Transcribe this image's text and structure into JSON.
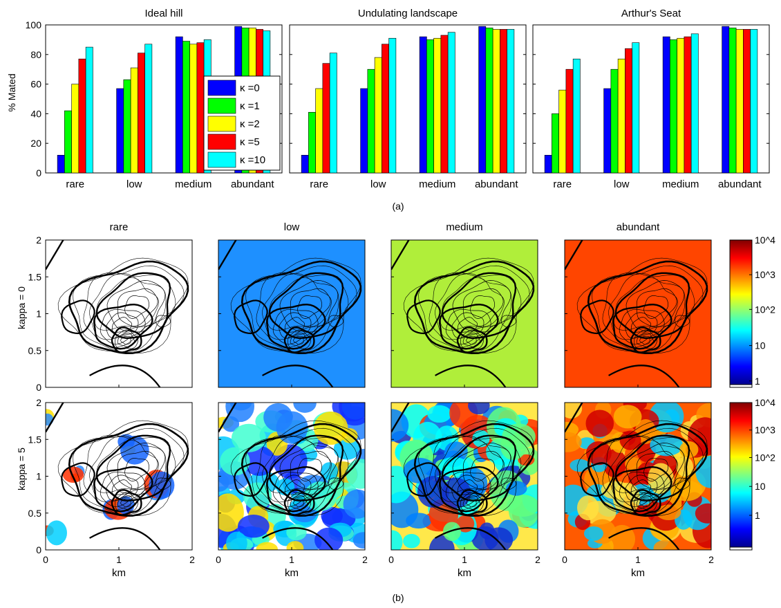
{
  "colors": {
    "kappa_0": "#0000ff",
    "kappa_1": "#00ff00",
    "kappa_2": "#ffff00",
    "kappa_5": "#ff0000",
    "kappa_10": "#00ffff",
    "rare_background": "#ffffff",
    "low_background": "#1e90ff",
    "medium_background": "#b0ee3a",
    "abundant_background": "#ff4500"
  },
  "chart_data": [
    {
      "type": "bar",
      "title": "Ideal hill",
      "ylabel": "% Mated",
      "xlabel": "",
      "categories": [
        "rare",
        "low",
        "medium",
        "abundant"
      ],
      "ylim": [
        0,
        100
      ],
      "yticks": [
        "0",
        "20",
        "40",
        "60",
        "80",
        "100"
      ],
      "legend_position": "center-right",
      "series": [
        {
          "name": "κ =0",
          "values": [
            12,
            57,
            92,
            99
          ]
        },
        {
          "name": "κ =1",
          "values": [
            42,
            63,
            89,
            98
          ]
        },
        {
          "name": "κ =2",
          "values": [
            60,
            71,
            87,
            98
          ]
        },
        {
          "name": "κ =5",
          "values": [
            77,
            81,
            88,
            97
          ]
        },
        {
          "name": "κ =10",
          "values": [
            85,
            87,
            90,
            96
          ]
        }
      ]
    },
    {
      "type": "bar",
      "title": "Undulating landscape",
      "categories": [
        "rare",
        "low",
        "medium",
        "abundant"
      ],
      "ylim": [
        0,
        100
      ],
      "series": [
        {
          "name": "κ =0",
          "values": [
            12,
            57,
            92,
            99
          ]
        },
        {
          "name": "κ =1",
          "values": [
            41,
            70,
            90,
            98
          ]
        },
        {
          "name": "κ =2",
          "values": [
            57,
            78,
            91,
            97
          ]
        },
        {
          "name": "κ =5",
          "values": [
            74,
            87,
            93,
            97
          ]
        },
        {
          "name": "κ =10",
          "values": [
            81,
            91,
            95,
            97
          ]
        }
      ]
    },
    {
      "type": "bar",
      "title": "Arthur's Seat",
      "categories": [
        "rare",
        "low",
        "medium",
        "abundant"
      ],
      "ylim": [
        0,
        100
      ],
      "series": [
        {
          "name": "κ =0",
          "values": [
            12,
            57,
            92,
            99
          ]
        },
        {
          "name": "κ =1",
          "values": [
            40,
            70,
            90,
            98
          ]
        },
        {
          "name": "κ =2",
          "values": [
            56,
            77,
            91,
            97
          ]
        },
        {
          "name": "κ =5",
          "values": [
            70,
            84,
            92,
            97
          ]
        },
        {
          "name": "κ =10",
          "values": [
            77,
            88,
            94,
            97
          ]
        }
      ]
    },
    {
      "type": "heatmap",
      "columns": [
        "rare",
        "low",
        "medium",
        "abundant"
      ],
      "rows": [
        "kappa = 0",
        "kappa = 5"
      ],
      "xlabel": "km",
      "xlim": [
        0,
        2
      ],
      "ylim": [
        0,
        2
      ],
      "xticks": [
        "0",
        "1",
        "2"
      ],
      "yticks": [
        "0",
        "0.5",
        "1",
        "1.5",
        "2"
      ],
      "colorbar_scale": "log",
      "colorbar_row0_ticks": [
        "1",
        "10",
        "10^2",
        "10^3",
        "10^4"
      ],
      "colorbar_row1_ticks": [
        "1",
        "10",
        "10^2",
        "10^3",
        "10^4"
      ]
    }
  ],
  "captions": {
    "panel_a": "(a)",
    "panel_b": "(b)"
  }
}
